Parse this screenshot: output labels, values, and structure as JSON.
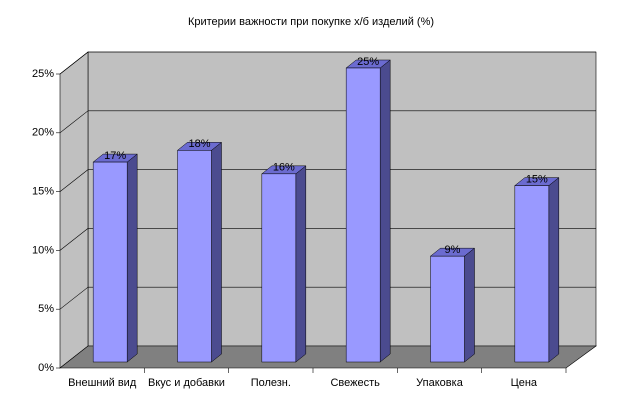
{
  "chart_data": {
    "type": "bar3d",
    "title": "Критерии важности при покупке х/б изделий (%)",
    "categories": [
      "Внешний вид",
      "Вкус и добавки",
      "Полезн.",
      "Свежесть",
      "Упаковка",
      "Цена"
    ],
    "values": [
      17,
      18,
      16,
      25,
      9,
      15
    ],
    "value_labels": [
      "17%",
      "18%",
      "16%",
      "25%",
      "9%",
      "15%"
    ],
    "color": "#9999ff",
    "ylim": [
      0,
      25
    ],
    "yticks": [
      {
        "value": 0,
        "label": "0%"
      },
      {
        "value": 5,
        "label": "5%"
      },
      {
        "value": 10,
        "label": "10%"
      },
      {
        "value": 15,
        "label": "15%"
      },
      {
        "value": 20,
        "label": "20%"
      },
      {
        "value": 25,
        "label": "25%"
      }
    ],
    "grid": true
  }
}
